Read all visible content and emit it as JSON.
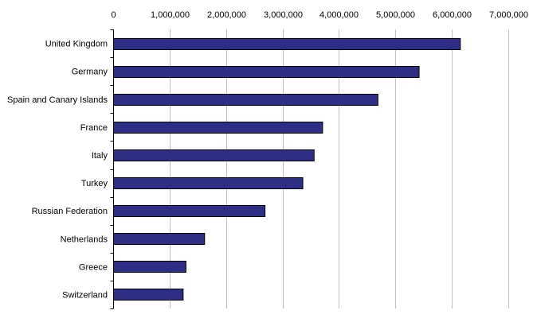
{
  "chart_data": {
    "type": "bar",
    "orientation": "horizontal",
    "categories": [
      "United Kingdom",
      "Germany",
      "Spain and Canary Islands",
      "France",
      "Italy",
      "Turkey",
      "Russian Federation",
      "Netherlands",
      "Greece",
      "Switzerland"
    ],
    "values": [
      6150000,
      5420000,
      4690000,
      3710000,
      3560000,
      3360000,
      2690000,
      1620000,
      1290000,
      1240000
    ],
    "x_ticks": [
      "0",
      "1,000,000",
      "2,000,000",
      "3,000,000",
      "4,000,000",
      "5,000,000",
      "6,000,000",
      "7,000,000"
    ],
    "xlim": [
      0,
      7000000
    ],
    "tick_axis_position": "top",
    "grid": true,
    "legend": "none",
    "colors": {
      "bar_fill": "#2e2e86",
      "bar_stroke": "#000000",
      "gridline": "#c0c0c0",
      "axis": "#000000"
    }
  }
}
